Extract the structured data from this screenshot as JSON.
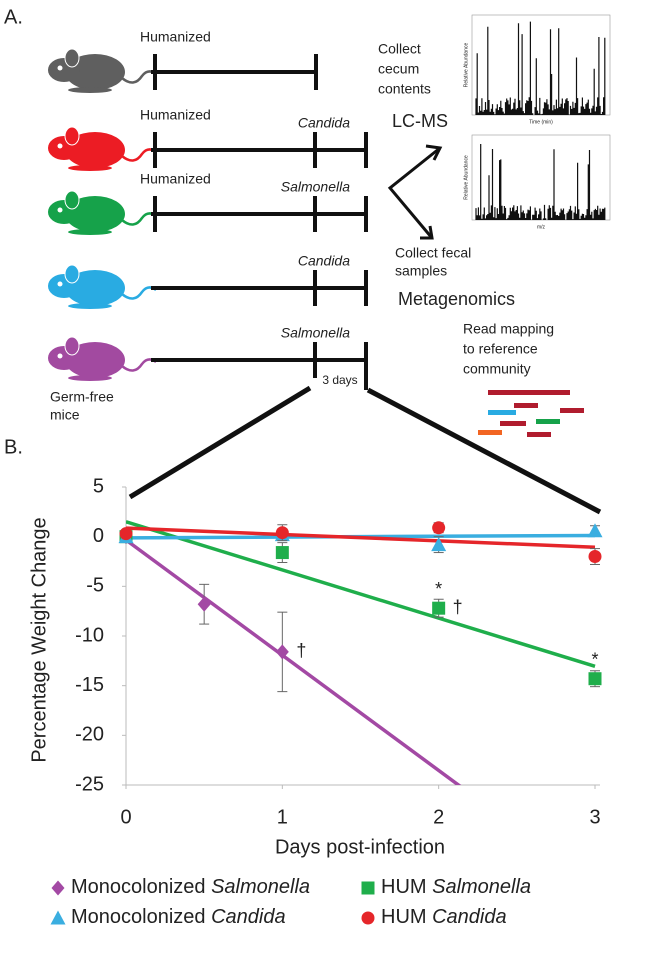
{
  "panel_a": {
    "label": "A.",
    "rows": [
      {
        "label": "Humanized"
      },
      {
        "label": "Humanized",
        "pathogen": "Candida"
      },
      {
        "label": "Humanized",
        "pathogen": "Salmonella"
      },
      {
        "pathogen": "Candida"
      },
      {
        "pathogen": "Salmonella",
        "duration": "3 days"
      }
    ],
    "mouse_label": [
      "Germ-free",
      "mice"
    ],
    "cecum": [
      "Collect",
      "cecum",
      "contents"
    ],
    "lcms": "LC-MS",
    "fecal": [
      "Collect fecal",
      "samples"
    ],
    "metagenomics": "Metagenomics",
    "read_mapping": [
      "Read mapping",
      "to reference",
      "community"
    ],
    "spectrum_y_label": "Relative Abundance",
    "spectrum_1_x_label": "Time (min)",
    "spectrum_2_x_label": "m/z"
  },
  "chart_data": {
    "type": "scatter",
    "panel_label": "B.",
    "y_label": "Percentage Weight Change",
    "x_label": "Days post-infection",
    "xlim": [
      0,
      3
    ],
    "xticks": [
      0,
      1,
      2,
      3
    ],
    "ylim": [
      -25,
      5
    ],
    "yticks": [
      5,
      0,
      -5,
      -10,
      -15,
      -20,
      -25
    ],
    "trendline": true,
    "series": [
      {
        "name": "Monocolonized Salmonella",
        "marker": "diamond",
        "color": "#a349a4",
        "x": [
          0,
          0.5,
          1
        ],
        "values": [
          0,
          -6.8,
          -11.6
        ],
        "errors": [
          0,
          2,
          4
        ],
        "notes_above": [
          null,
          null,
          null
        ],
        "notes_right": [
          null,
          null,
          "†"
        ]
      },
      {
        "name": "HUM Salmonella",
        "marker": "square",
        "color": "#1fae4b",
        "x": [
          0,
          1,
          2,
          3
        ],
        "values": [
          0,
          -1.6,
          -7.2,
          -14.3
        ],
        "errors": [
          0,
          1,
          0.9,
          0.8
        ],
        "notes_above": [
          null,
          null,
          "*",
          "*"
        ],
        "notes_right": [
          null,
          null,
          "†",
          null
        ]
      },
      {
        "name": "Monocolonized Candida",
        "marker": "triangle",
        "color": "#3aaee0",
        "x": [
          0,
          1,
          2,
          3
        ],
        "values": [
          0,
          0.2,
          -0.8,
          0.6
        ],
        "errors": [
          0,
          0.5,
          0.8,
          0.5
        ],
        "notes_above": [
          null,
          null,
          null,
          null
        ],
        "notes_right": [
          null,
          null,
          null,
          null
        ]
      },
      {
        "name": "HUM Candida",
        "marker": "circle",
        "color": "#e5262a",
        "x": [
          0,
          1,
          2,
          3
        ],
        "values": [
          0.3,
          0.4,
          0.9,
          -2.0
        ],
        "errors": [
          0.3,
          0.8,
          0.5,
          0.8
        ],
        "notes_above": [
          null,
          null,
          null,
          null
        ],
        "notes_right": [
          null,
          null,
          null,
          null
        ]
      }
    ]
  }
}
